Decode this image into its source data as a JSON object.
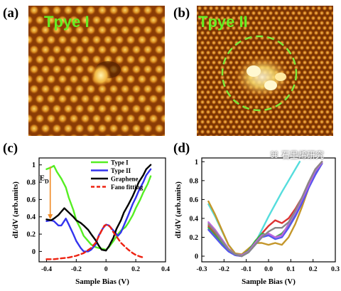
{
  "panels": {
    "a": {
      "label": "(a)",
      "title": "Tpye I"
    },
    "b": {
      "label": "(b)",
      "title": "Tpye II"
    },
    "c": {
      "label": "(c)"
    },
    "d": {
      "label": "(d)"
    }
  },
  "watermark": "石墨烯研究",
  "colors": {
    "stm_dark": "#6b2c00",
    "stm_mid": "#c46a10",
    "stm_bright": "#f6d86a",
    "circle": "#7be83a"
  },
  "chart_data": [
    {
      "type": "line",
      "panel": "c",
      "xlabel": "Sample Bias (V)",
      "ylabel": "dI/dV (arb.units)",
      "xlim": [
        -0.45,
        0.4
      ],
      "ylim": [
        -0.12,
        1.08
      ],
      "xticks": [
        "-0.4",
        "-0.2",
        "0",
        "0.2",
        "0.4"
      ],
      "xtick_values": [
        -0.4,
        -0.2,
        0,
        0.2,
        0.4
      ],
      "yticks": [
        "0",
        "0.2",
        "0.4",
        "0.6",
        "0.8",
        "1"
      ],
      "ytick_values": [
        0,
        0.2,
        0.4,
        0.6,
        0.8,
        1
      ],
      "annotation": "E",
      "annotation_sub": "D",
      "legend_position": "top-right",
      "series": [
        {
          "name": "Type I",
          "color": "#55ee22",
          "dash": "",
          "x": [
            -0.4,
            -0.37,
            -0.35,
            -0.33,
            -0.3,
            -0.27,
            -0.25,
            -0.22,
            -0.2,
            -0.17,
            -0.15,
            -0.12,
            -0.1,
            -0.07,
            -0.05,
            -0.02,
            0,
            0.02,
            0.05,
            0.08,
            0.1,
            0.13,
            0.15,
            0.18,
            0.2,
            0.23,
            0.25,
            0.28,
            0.3
          ],
          "y": [
            0.95,
            0.97,
            0.99,
            0.92,
            0.84,
            0.74,
            0.62,
            0.48,
            0.36,
            0.26,
            0.18,
            0.12,
            0.08,
            0.05,
            0.04,
            0.03,
            0.02,
            0.05,
            0.12,
            0.2,
            0.24,
            0.28,
            0.33,
            0.42,
            0.5,
            0.6,
            0.68,
            0.78,
            0.87
          ]
        },
        {
          "name": "Type II",
          "color": "#3333ee",
          "dash": "",
          "x": [
            -0.4,
            -0.37,
            -0.35,
            -0.32,
            -0.3,
            -0.27,
            -0.25,
            -0.22,
            -0.2,
            -0.17,
            -0.15,
            -0.12,
            -0.1,
            -0.07,
            -0.05,
            -0.02,
            0,
            0.02,
            0.05,
            0.08,
            0.1,
            0.12,
            0.15,
            0.18,
            0.2,
            0.22,
            0.25,
            0.27,
            0.3
          ],
          "y": [
            0.35,
            0.36,
            0.35,
            0.3,
            0.3,
            0.38,
            0.31,
            0.2,
            0.12,
            0.04,
            0.0,
            0.0,
            0.02,
            0.08,
            0.18,
            0.27,
            0.31,
            0.3,
            0.24,
            0.18,
            0.22,
            0.3,
            0.42,
            0.55,
            0.62,
            0.7,
            0.8,
            0.88,
            0.95
          ]
        },
        {
          "name": "Graphene",
          "color": "#000000",
          "dash": "",
          "x": [
            -0.4,
            -0.37,
            -0.35,
            -0.32,
            -0.3,
            -0.28,
            -0.25,
            -0.22,
            -0.2,
            -0.17,
            -0.15,
            -0.12,
            -0.1,
            -0.07,
            -0.05,
            -0.03,
            0,
            0.02,
            0.05,
            0.07,
            0.1,
            0.12,
            0.15,
            0.18,
            0.2,
            0.22,
            0.25,
            0.27,
            0.3
          ],
          "y": [
            0.37,
            0.36,
            0.38,
            0.42,
            0.46,
            0.5,
            0.45,
            0.4,
            0.36,
            0.33,
            0.3,
            0.25,
            0.2,
            0.13,
            0.07,
            0.02,
            0.01,
            0.06,
            0.16,
            0.26,
            0.36,
            0.45,
            0.54,
            0.64,
            0.72,
            0.8,
            0.88,
            0.95,
            1.0
          ]
        },
        {
          "name": "Fano fitting",
          "color": "#ee2211",
          "dash": "6,4",
          "x": [
            -0.4,
            -0.35,
            -0.3,
            -0.25,
            -0.2,
            -0.15,
            -0.1,
            -0.07,
            -0.05,
            -0.03,
            -0.01,
            0.01,
            0.03,
            0.05,
            0.08,
            0.1,
            0.13,
            0.15,
            0.18,
            0.2,
            0.23,
            0.25
          ],
          "y": [
            -0.09,
            -0.09,
            -0.08,
            -0.07,
            -0.05,
            -0.02,
            0.04,
            0.1,
            0.17,
            0.24,
            0.3,
            0.31,
            0.28,
            0.22,
            0.15,
            0.1,
            0.05,
            0.02,
            -0.02,
            -0.04,
            -0.06,
            -0.07
          ]
        }
      ]
    },
    {
      "type": "line",
      "panel": "d",
      "xlabel": "Sample Bias (V)",
      "ylabel": "dI/dV (arb.units)",
      "xlim": [
        -0.3,
        0.3
      ],
      "ylim": [
        -0.06,
        1.04
      ],
      "xticks": [
        "-0.3",
        "-0.2",
        "-0.1",
        "0.0",
        "0.1",
        "0.2",
        "0.3"
      ],
      "xtick_values": [
        -0.3,
        -0.2,
        -0.1,
        0.0,
        0.1,
        0.2,
        0.3
      ],
      "yticks": [
        "0",
        "0.2",
        "0.4",
        "0.6",
        "0.8",
        "1"
      ],
      "ytick_values": [
        0,
        0.2,
        0.4,
        0.6,
        0.8,
        1
      ],
      "series": [
        {
          "color": "#55dddd",
          "dash": "",
          "x": [
            -0.27,
            -0.24,
            -0.21,
            -0.18,
            -0.15,
            -0.12,
            -0.09,
            -0.06,
            -0.03,
            0,
            0.03,
            0.06,
            0.09,
            0.12,
            0.14
          ],
          "y": [
            0.55,
            0.42,
            0.27,
            0.12,
            0.03,
            0.0,
            0.04,
            0.14,
            0.28,
            0.42,
            0.55,
            0.68,
            0.8,
            0.92,
            1.0
          ]
        },
        {
          "color": "#c4962a",
          "dash": "",
          "x": [
            -0.27,
            -0.24,
            -0.21,
            -0.18,
            -0.15,
            -0.12,
            -0.09,
            -0.06,
            -0.03,
            0,
            0.03,
            0.06,
            0.09,
            0.12,
            0.15,
            0.18,
            0.21,
            0.24
          ],
          "y": [
            0.58,
            0.44,
            0.28,
            0.12,
            0.03,
            0.02,
            0.08,
            0.14,
            0.14,
            0.12,
            0.14,
            0.12,
            0.2,
            0.34,
            0.52,
            0.72,
            0.9,
            0.98
          ]
        },
        {
          "color": "#dd3333",
          "dash": "",
          "x": [
            -0.27,
            -0.24,
            -0.21,
            -0.18,
            -0.15,
            -0.12,
            -0.09,
            -0.06,
            -0.03,
            0,
            0.03,
            0.06,
            0.09,
            0.12,
            0.15,
            0.18,
            0.21,
            0.24
          ],
          "y": [
            0.32,
            0.24,
            0.15,
            0.06,
            0.01,
            0.0,
            0.05,
            0.14,
            0.24,
            0.32,
            0.38,
            0.35,
            0.4,
            0.5,
            0.62,
            0.78,
            0.92,
            1.0
          ]
        },
        {
          "color": "#44aa44",
          "dash": "",
          "x": [
            -0.27,
            -0.24,
            -0.21,
            -0.18,
            -0.15,
            -0.12,
            -0.09,
            -0.06,
            -0.03,
            0,
            0.03,
            0.06,
            0.09,
            0.12,
            0.15,
            0.18,
            0.21,
            0.24
          ],
          "y": [
            0.3,
            0.22,
            0.14,
            0.06,
            0.02,
            0.01,
            0.06,
            0.16,
            0.24,
            0.22,
            0.2,
            0.24,
            0.32,
            0.44,
            0.58,
            0.74,
            0.88,
            0.98
          ]
        },
        {
          "color": "#5555ee",
          "dash": "",
          "x": [
            -0.27,
            -0.24,
            -0.21,
            -0.18,
            -0.15,
            -0.12,
            -0.09,
            -0.06,
            -0.03,
            0,
            0.03,
            0.06,
            0.09,
            0.12,
            0.15,
            0.18,
            0.21,
            0.24
          ],
          "y": [
            0.28,
            0.2,
            0.12,
            0.05,
            0.01,
            0.0,
            0.04,
            0.12,
            0.2,
            0.22,
            0.18,
            0.2,
            0.3,
            0.42,
            0.56,
            0.72,
            0.86,
            0.98
          ]
        },
        {
          "color": "#bb66dd",
          "dash": "",
          "x": [
            -0.27,
            -0.24,
            -0.21,
            -0.18,
            -0.15,
            -0.12,
            -0.09,
            -0.06,
            -0.03,
            0,
            0.03,
            0.06,
            0.09,
            0.12,
            0.15,
            0.18,
            0.21,
            0.24
          ],
          "y": [
            0.36,
            0.28,
            0.18,
            0.08,
            0.02,
            0.01,
            0.05,
            0.14,
            0.22,
            0.24,
            0.2,
            0.22,
            0.34,
            0.46,
            0.6,
            0.75,
            0.9,
            0.99
          ]
        },
        {
          "color": "#888888",
          "dash": "",
          "x": [
            -0.27,
            -0.24,
            -0.21,
            -0.18,
            -0.15,
            -0.12,
            -0.09,
            -0.06,
            -0.03,
            0,
            0.03,
            0.06,
            0.09,
            0.12,
            0.15,
            0.18,
            0.21,
            0.24
          ],
          "y": [
            0.34,
            0.26,
            0.16,
            0.07,
            0.02,
            0.0,
            0.04,
            0.12,
            0.2,
            0.26,
            0.3,
            0.3,
            0.36,
            0.48,
            0.62,
            0.78,
            0.92,
            1.0
          ]
        }
      ]
    }
  ]
}
